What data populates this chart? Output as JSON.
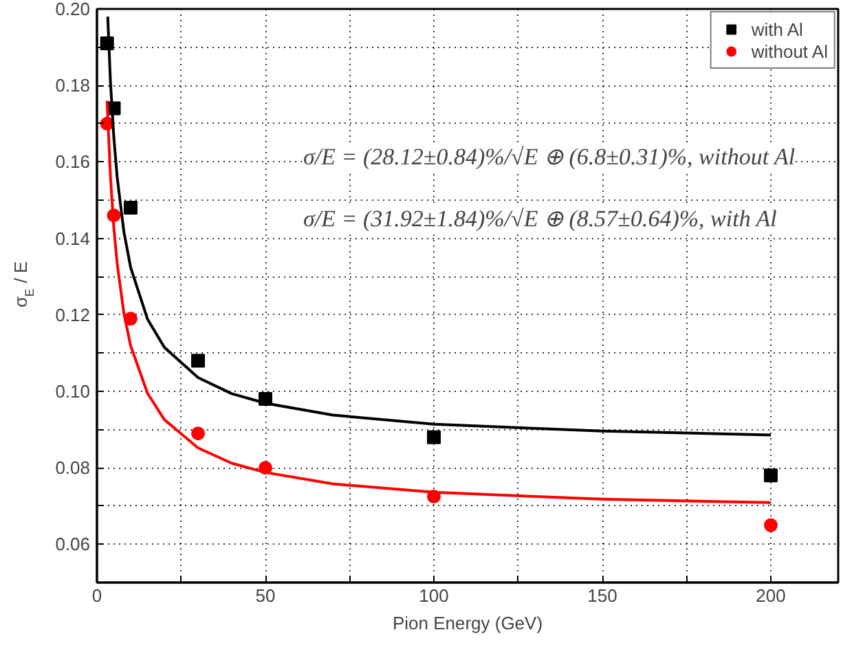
{
  "chart_data": {
    "type": "scatter",
    "xlabel": "Pion Energy (GeV)",
    "ylabel": "σ$_{E}$ / E",
    "xlim": [
      0,
      220
    ],
    "ylim": [
      0.05,
      0.2
    ],
    "xticks": [
      0,
      {
        "value": 25,
        "label": null
      },
      50,
      {
        "value": 75,
        "label": null
      },
      100,
      {
        "value": 125,
        "label": null
      },
      150,
      {
        "value": 175,
        "label": null
      },
      200
    ],
    "yticks": [
      {
        "value": 0.06,
        "label": "0.06"
      },
      {
        "value": 0.07,
        "label": null
      },
      {
        "value": 0.08,
        "label": "0.08"
      },
      {
        "value": 0.09,
        "label": null
      },
      {
        "value": 0.1,
        "label": "0.10"
      },
      {
        "value": 0.11,
        "label": null
      },
      {
        "value": 0.12,
        "label": "0.12"
      },
      {
        "value": 0.13,
        "label": null
      },
      {
        "value": 0.14,
        "label": "0.14"
      },
      {
        "value": 0.15,
        "label": null
      },
      {
        "value": 0.16,
        "label": "0.16"
      },
      {
        "value": 0.17,
        "label": null
      },
      {
        "value": 0.18,
        "label": "0.18"
      },
      {
        "value": 0.19,
        "label": null
      },
      {
        "value": 0.2,
        "label": "0.20"
      }
    ],
    "grid": true,
    "legend": "top right",
    "annotations": [
      "σ/E = (28.12±0.84)%/√E ⊕ (6.8±0.31)%, without Al",
      "σ/E = (31.92±1.84)%/√E ⊕ (8.57±0.64)%, with Al"
    ],
    "series": [
      {
        "name": "with Al",
        "marker": "square",
        "color": "#000000",
        "x": [
          3,
          5,
          10,
          30,
          50,
          100,
          200
        ],
        "values": [
          0.191,
          0.174,
          0.148,
          0.108,
          0.098,
          0.088,
          0.078
        ]
      },
      {
        "name": "without Al",
        "marker": "circle",
        "color": "#ff0000",
        "x": [
          3,
          5,
          10,
          30,
          50,
          100,
          200
        ],
        "values": [
          0.17,
          0.146,
          0.119,
          0.089,
          0.08,
          0.0725,
          0.065
        ]
      },
      {
        "type": "line",
        "color": "#000000",
        "x": [
          3.2,
          4,
          5,
          6,
          8,
          10,
          15,
          20,
          30,
          40,
          50,
          70,
          100,
          150,
          200
        ],
        "values": [
          0.198,
          0.181,
          0.1665,
          0.156,
          0.1417,
          0.1324,
          0.1189,
          0.1115,
          0.1036,
          0.0994,
          0.0969,
          0.0938,
          0.0914,
          0.0896,
          0.0886
        ]
      },
      {
        "type": "line",
        "color": "#ff0000",
        "x": [
          3,
          4,
          5,
          6,
          8,
          10,
          15,
          20,
          30,
          40,
          50,
          70,
          100,
          150,
          200
        ],
        "values": [
          0.176,
          0.1562,
          0.1429,
          0.1334,
          0.1204,
          0.1119,
          0.0995,
          0.0926,
          0.0852,
          0.0812,
          0.0788,
          0.0758,
          0.0736,
          0.0718,
          0.0709
        ]
      }
    ]
  }
}
